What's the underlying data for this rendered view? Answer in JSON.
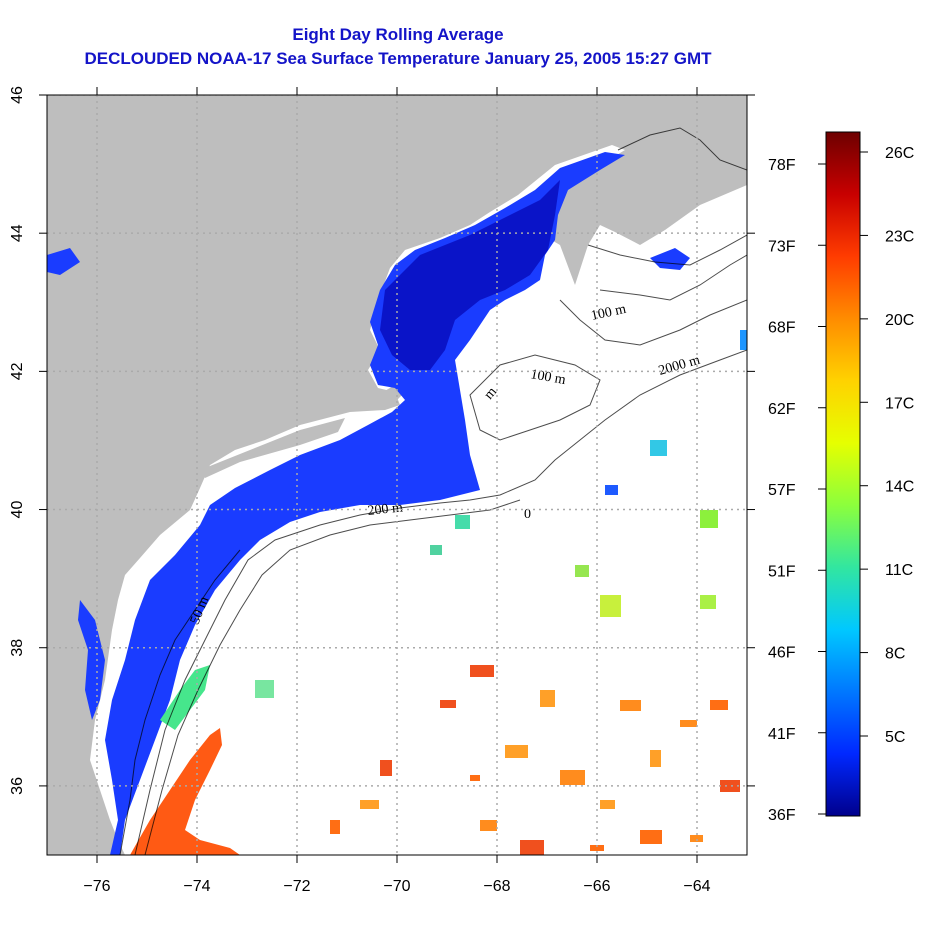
{
  "title": {
    "line1": "Eight Day Rolling Average",
    "line2": "DECLOUDED NOAA-17 Sea Surface Temperature January 25, 2005 15:27 GMT"
  },
  "map": {
    "lon_range": [
      -77,
      -63
    ],
    "lat_range": [
      35,
      46
    ],
    "x_ticks": [
      {
        "value": -76,
        "label": "−76"
      },
      {
        "value": -74,
        "label": "−74"
      },
      {
        "value": -72,
        "label": "−72"
      },
      {
        "value": -70,
        "label": "−70"
      },
      {
        "value": -68,
        "label": "−68"
      },
      {
        "value": -66,
        "label": "−66"
      },
      {
        "value": -64,
        "label": "−64"
      }
    ],
    "y_ticks": [
      {
        "value": 36,
        "label": "36"
      },
      {
        "value": 38,
        "label": "38"
      },
      {
        "value": 40,
        "label": "40"
      },
      {
        "value": 42,
        "label": "42"
      },
      {
        "value": 44,
        "label": "44"
      },
      {
        "value": 46,
        "label": "46"
      }
    ],
    "grid": "dotted",
    "contour_labels": [
      "100 m",
      "100 m",
      "2000 m",
      "200 m",
      "50 m",
      "m",
      "0"
    ],
    "colors": {
      "land": "#bebebe",
      "no_data": "#ffffff",
      "coastal_water": "#1a3cff",
      "gulf_of_maine": "#0a14c8",
      "gulf_stream": "#ff5a14"
    }
  },
  "colorbar": {
    "celsius_labels": [
      "26C",
      "23C",
      "20C",
      "17C",
      "14C",
      "11C",
      "8C",
      "5C"
    ],
    "fahrenheit_labels": [
      "78F",
      "73F",
      "68F",
      "62F",
      "57F",
      "51F",
      "46F",
      "41F",
      "36F"
    ],
    "gradient_stops": [
      "#6e0000",
      "#c80000",
      "#ff3c00",
      "#ff8c00",
      "#ffd200",
      "#e6ff00",
      "#8cff3c",
      "#32e6a0",
      "#00c8ff",
      "#0078ff",
      "#0028ff",
      "#00008c"
    ]
  }
}
